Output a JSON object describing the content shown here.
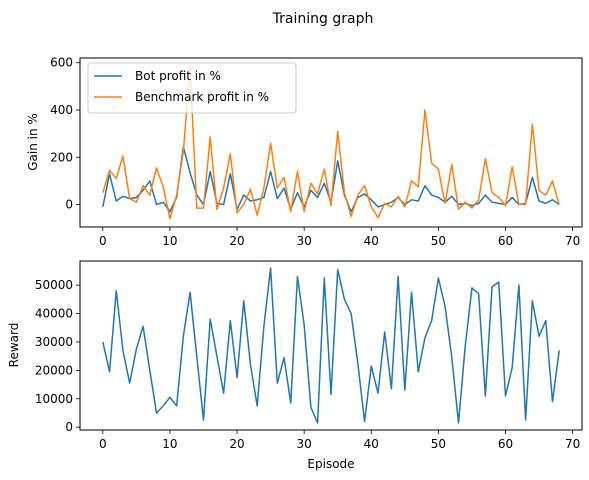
{
  "title": "Training graph",
  "chart_data": [
    {
      "type": "line",
      "ylabel": "Gain in %",
      "xlabel": "",
      "xlim": [
        -3.4,
        71.4
      ],
      "ylim": [
        -95,
        620
      ],
      "xticks": [
        0,
        10,
        20,
        30,
        40,
        50,
        60,
        70
      ],
      "yticks": [
        0,
        200,
        400,
        600
      ],
      "legend_position": "upper-left",
      "series": [
        {
          "name": "Bot profit in %",
          "color": "#1f77b4",
          "values": [
            -10,
            130,
            15,
            35,
            25,
            30,
            60,
            100,
            0,
            10,
            -30,
            30,
            245,
            135,
            40,
            0,
            140,
            5,
            0,
            130,
            -20,
            40,
            15,
            20,
            30,
            140,
            25,
            70,
            -20,
            50,
            -10,
            60,
            30,
            90,
            10,
            185,
            40,
            -30,
            30,
            45,
            20,
            -10,
            0,
            10,
            30,
            0,
            20,
            15,
            80,
            40,
            30,
            10,
            35,
            0,
            5,
            -5,
            5,
            40,
            10,
            5,
            0,
            30,
            0,
            5,
            115,
            15,
            5,
            20,
            0
          ]
        },
        {
          "name": "Benchmark profit in %",
          "color": "#ff7f0e",
          "values": [
            50,
            145,
            110,
            205,
            25,
            10,
            80,
            40,
            155,
            75,
            -60,
            40,
            225,
            580,
            -15,
            -15,
            285,
            -20,
            70,
            215,
            -35,
            0,
            65,
            -45,
            70,
            260,
            70,
            115,
            -30,
            140,
            -30,
            90,
            45,
            150,
            -5,
            310,
            50,
            -50,
            40,
            80,
            -10,
            -55,
            5,
            -10,
            35,
            -10,
            100,
            75,
            400,
            175,
            150,
            5,
            170,
            -20,
            10,
            -15,
            20,
            195,
            50,
            30,
            -5,
            160,
            0,
            0,
            340,
            60,
            40,
            100,
            0
          ]
        }
      ]
    },
    {
      "type": "line",
      "ylabel": "Reward",
      "xlabel": "Episode",
      "xlim": [
        -3.4,
        71.4
      ],
      "ylim": [
        -1000,
        58500
      ],
      "xticks": [
        0,
        10,
        20,
        30,
        40,
        50,
        60,
        70
      ],
      "yticks": [
        0,
        10000,
        20000,
        30000,
        40000,
        50000
      ],
      "series": [
        {
          "name": "Reward",
          "color": "#1f77b4",
          "values": [
            30000,
            19500,
            48000,
            27000,
            15500,
            27500,
            35500,
            20000,
            5000,
            7500,
            10500,
            7500,
            32000,
            47500,
            25000,
            2500,
            38000,
            25000,
            12000,
            37500,
            17500,
            44500,
            22000,
            7500,
            35500,
            56000,
            15500,
            24500,
            8500,
            53000,
            36000,
            7000,
            1500,
            52500,
            11500,
            55500,
            45000,
            40000,
            22500,
            2000,
            21500,
            12000,
            33500,
            13500,
            53000,
            13000,
            47500,
            19500,
            31500,
            37500,
            52500,
            42500,
            24500,
            1500,
            28500,
            49000,
            47000,
            11000,
            49500,
            51000,
            11000,
            21000,
            50000,
            2500,
            44500,
            32000,
            37500,
            9000,
            27000
          ]
        }
      ]
    }
  ]
}
